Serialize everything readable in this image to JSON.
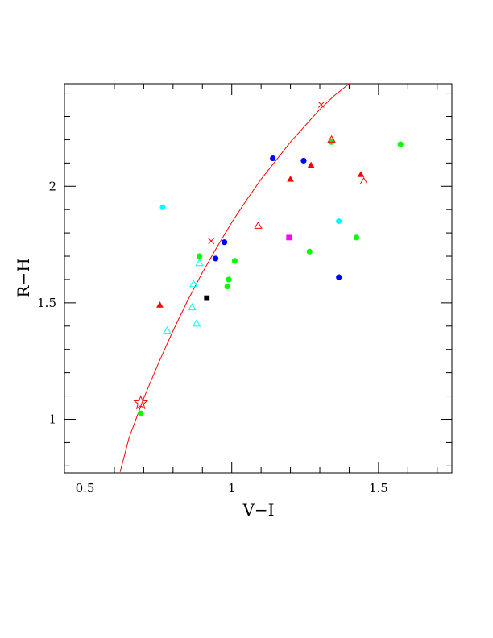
{
  "chart_data": {
    "type": "scatter",
    "xlabel": "V−I",
    "ylabel": "R−H",
    "xlim": [
      0.43,
      1.75
    ],
    "ylim": [
      0.77,
      2.44
    ],
    "x_ticks": [
      {
        "value": 0.5,
        "label": "0.5"
      },
      {
        "value": 1.0,
        "label": "1"
      },
      {
        "value": 1.5,
        "label": "1.5"
      }
    ],
    "y_ticks": [
      {
        "value": 1.0,
        "label": "1"
      },
      {
        "value": 1.5,
        "label": "1.5"
      },
      {
        "value": 2.0,
        "label": "2"
      }
    ],
    "x_minor_step": 0.1,
    "y_minor_step": 0.1,
    "grid": false,
    "legend": "none",
    "series": [
      {
        "marker": "circle",
        "color": "#00ff00",
        "x": [
          0.69,
          0.89,
          0.985,
          0.99,
          1.01,
          1.265,
          1.34,
          1.425,
          1.575
        ],
        "y": [
          1.025,
          1.7,
          1.57,
          1.6,
          1.68,
          1.72,
          2.19,
          1.78,
          2.18
        ]
      },
      {
        "marker": "circle",
        "color": "#0000ff",
        "x": [
          0.945,
          0.975,
          1.14,
          1.245,
          1.365
        ],
        "y": [
          1.69,
          1.76,
          2.12,
          2.11,
          1.61
        ]
      },
      {
        "marker": "circle",
        "color": "#00ffff",
        "x": [
          0.765,
          1.365
        ],
        "y": [
          1.91,
          1.85
        ]
      },
      {
        "marker": "triangle-filled",
        "color": "#ff0000",
        "x": [
          0.755,
          1.2,
          1.27,
          1.44
        ],
        "y": [
          1.49,
          2.03,
          2.09,
          2.05
        ]
      },
      {
        "marker": "triangle-open",
        "color": "#ff0000",
        "x": [
          1.09,
          1.34,
          1.45
        ],
        "y": [
          1.83,
          2.2,
          2.02
        ]
      },
      {
        "marker": "triangle-open",
        "color": "#00ffff",
        "x": [
          0.78,
          0.865,
          0.87,
          0.88,
          0.89
        ],
        "y": [
          1.38,
          1.48,
          1.58,
          1.41,
          1.67
        ]
      },
      {
        "marker": "square",
        "color": "#000000",
        "x": [
          0.915
        ],
        "y": [
          1.52
        ]
      },
      {
        "marker": "square",
        "color": "#ff00ff",
        "x": [
          1.195
        ],
        "y": [
          1.78
        ]
      },
      {
        "marker": "star-open",
        "color": "#ff0000",
        "x": [
          0.69
        ],
        "y": [
          1.07
        ]
      }
    ],
    "curve": {
      "color": "#ff0000",
      "x": [
        0.62,
        0.65,
        0.7,
        0.75,
        0.8,
        0.85,
        0.9,
        0.95,
        1.0,
        1.05,
        1.1,
        1.15,
        1.2,
        1.25,
        1.3,
        1.35,
        1.4,
        1.435
      ],
      "y": [
        0.775,
        0.92,
        1.09,
        1.24,
        1.38,
        1.51,
        1.63,
        1.74,
        1.845,
        1.94,
        2.03,
        2.11,
        2.19,
        2.26,
        2.33,
        2.39,
        2.44,
        2.47
      ],
      "cross_markers": {
        "x": [
          0.93,
          1.305
        ],
        "y": [
          1.765,
          2.35
        ]
      }
    }
  }
}
